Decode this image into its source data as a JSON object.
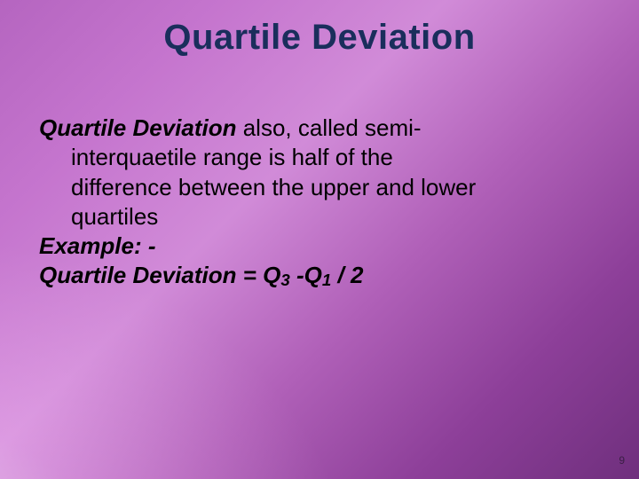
{
  "slide": {
    "background": {
      "gradient_colors": [
        "#b565c0",
        "#c575ce",
        "#d18bd8",
        "#b060b8",
        "#8d3f99",
        "#6f2f7d"
      ],
      "highlight_color": "rgba(255,255,255,0.55)"
    },
    "title": {
      "text": "Quartile Deviation",
      "color": "#1a2e5c",
      "fontsize_pt": 30,
      "weight": "bold"
    },
    "body": {
      "color": "#000000",
      "fontsize_pt": 20,
      "term": "Quartile Deviation",
      "def_first_fragment": " also, called semi-",
      "def_cont_line1": "interquaetile range is half of the",
      "def_cont_line2": "difference between the upper and lower",
      "def_cont_line3": "quartiles",
      "example_label": "Example: -",
      "formula_lead": "Quartile Deviation = Q",
      "formula_sub1": "3",
      "formula_mid": " -Q",
      "formula_sub2": "1",
      "formula_tail": " / 2"
    },
    "page_number": "9"
  }
}
